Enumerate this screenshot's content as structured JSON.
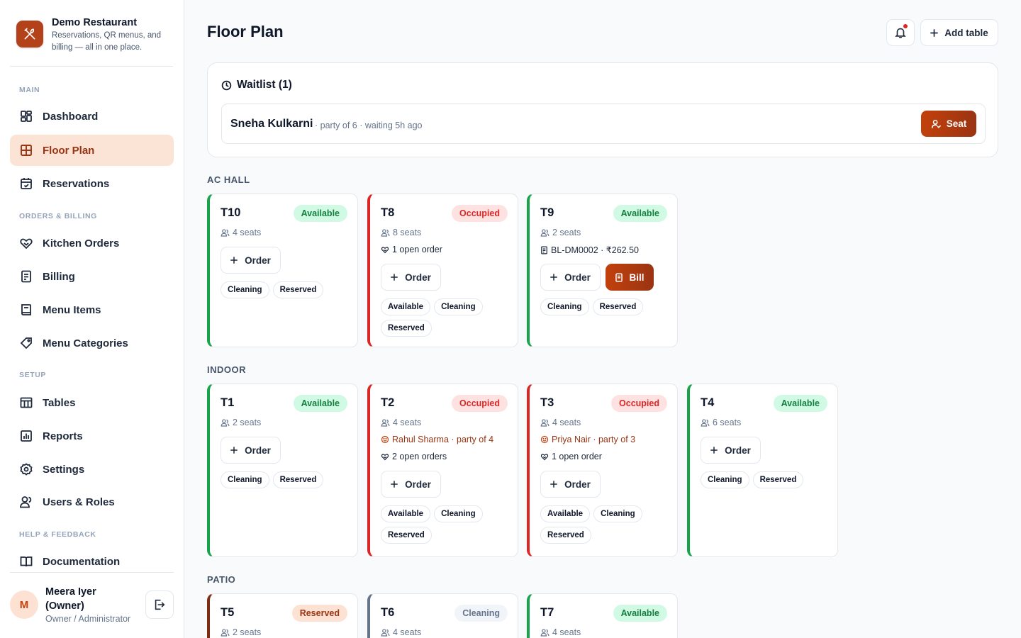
{
  "brand": {
    "name": "Demo Restaurant",
    "tagline": "Reservations, QR menus, and billing — all in one place."
  },
  "sidebar": {
    "sections": [
      {
        "label": "MAIN",
        "items": [
          {
            "label": "Dashboard",
            "icon": "dashboard-icon"
          },
          {
            "label": "Floor Plan",
            "icon": "floor-plan-icon",
            "active": true
          },
          {
            "label": "Reservations",
            "icon": "calendar-icon"
          }
        ]
      },
      {
        "label": "ORDERS & BILLING",
        "items": [
          {
            "label": "Kitchen Orders",
            "icon": "kitchen-orders-icon"
          },
          {
            "label": "Billing",
            "icon": "receipt-icon"
          },
          {
            "label": "Menu Items",
            "icon": "book-icon"
          },
          {
            "label": "Menu Categories",
            "icon": "tag-icon"
          }
        ]
      },
      {
        "label": "SETUP",
        "items": [
          {
            "label": "Tables",
            "icon": "table-icon"
          },
          {
            "label": "Reports",
            "icon": "chart-icon"
          },
          {
            "label": "Settings",
            "icon": "gear-icon"
          },
          {
            "label": "Users & Roles",
            "icon": "users-icon"
          }
        ]
      },
      {
        "label": "HELP & FEEDBACK",
        "items": [
          {
            "label": "Documentation",
            "icon": "docs-icon"
          }
        ]
      }
    ]
  },
  "user": {
    "initial": "M",
    "name": "Meera Iyer (Owner)",
    "role": "Owner / Administrator"
  },
  "header": {
    "title": "Floor Plan",
    "add_table_label": "Add table"
  },
  "waitlist": {
    "title": "Waitlist (1)",
    "entry": {
      "name": "Sneha Kulkarni",
      "meta": "· party of 6 · waiting 5h ago",
      "seat_label": "Seat"
    }
  },
  "labels": {
    "order": "Order",
    "bill": "Bill"
  },
  "areas": [
    {
      "name": "AC HALL",
      "tables": [
        {
          "name": "T10",
          "status": "Available",
          "seats": "4 seats",
          "chips": [
            "Cleaning",
            "Reserved"
          ]
        },
        {
          "name": "T8",
          "status": "Occupied",
          "seats": "8 seats",
          "orders": "1 open order",
          "chips": [
            "Available",
            "Cleaning",
            "Reserved"
          ]
        },
        {
          "name": "T9",
          "status": "Available",
          "seats": "2 seats",
          "bill_ref": "BL-DM0002 · ₹262.50",
          "has_bill": true,
          "chips": [
            "Cleaning",
            "Reserved"
          ]
        }
      ]
    },
    {
      "name": "INDOOR",
      "tables": [
        {
          "name": "T1",
          "status": "Available",
          "seats": "2 seats",
          "chips": [
            "Cleaning",
            "Reserved"
          ]
        },
        {
          "name": "T2",
          "status": "Occupied",
          "seats": "4 seats",
          "guest": "Rahul Sharma · party of 4",
          "orders": "2 open orders",
          "chips": [
            "Available",
            "Cleaning",
            "Reserved"
          ]
        },
        {
          "name": "T3",
          "status": "Occupied",
          "seats": "4 seats",
          "guest": "Priya Nair · party of 3",
          "orders": "1 open order",
          "chips": [
            "Available",
            "Cleaning",
            "Reserved"
          ]
        },
        {
          "name": "T4",
          "status": "Available",
          "seats": "6 seats",
          "chips": [
            "Cleaning",
            "Reserved"
          ]
        }
      ]
    },
    {
      "name": "PATIO",
      "tables": [
        {
          "name": "T5",
          "status": "Reserved",
          "seats": "2 seats",
          "chips": []
        },
        {
          "name": "T6",
          "status": "Cleaning",
          "seats": "4 seats",
          "chips": []
        },
        {
          "name": "T7",
          "status": "Available",
          "seats": "4 seats",
          "chips": []
        }
      ]
    }
  ],
  "colors": {
    "accent": "#c2410c",
    "available": "#16a34a",
    "occupied": "#dc2626",
    "reserved": "#7c2d12",
    "cleaning": "#64748b"
  }
}
